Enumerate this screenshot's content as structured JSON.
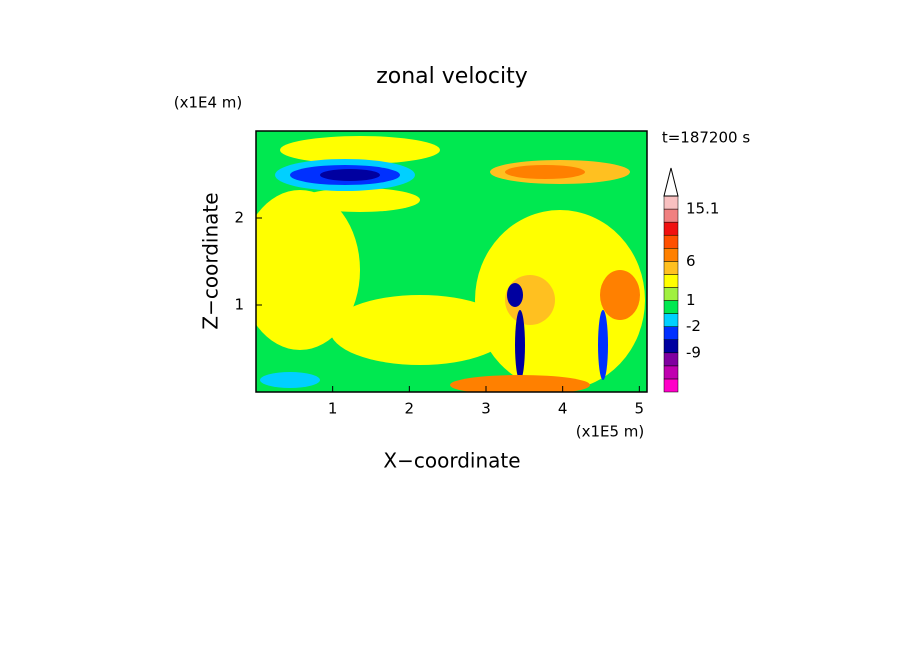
{
  "chart_data": {
    "type": "contour",
    "title": "zonal velocity",
    "x_label": "X−coordinate",
    "y_label": "Z−coordinate",
    "x_unit": "(x1E5 m)",
    "y_unit": "(x1E4 m)",
    "time_label": "t=187200 s",
    "xlim": [
      0,
      5.1
    ],
    "xticks": [
      1,
      2,
      3,
      4,
      5
    ],
    "ylim": [
      0,
      3
    ],
    "yticks": [
      1,
      2
    ],
    "colorbar": {
      "colors": [
        "#ff00c8",
        "#c000b0",
        "#8000a0",
        "#0000a0",
        "#0030ff",
        "#00d0ff",
        "#00e850",
        "#a0f040",
        "#ffff00",
        "#ffc020",
        "#ff8000",
        "#ff5000",
        "#f01010",
        "#f08080",
        "#f8c0c0"
      ],
      "ticks": [
        15.1,
        6,
        1,
        -2,
        -9
      ]
    }
  }
}
